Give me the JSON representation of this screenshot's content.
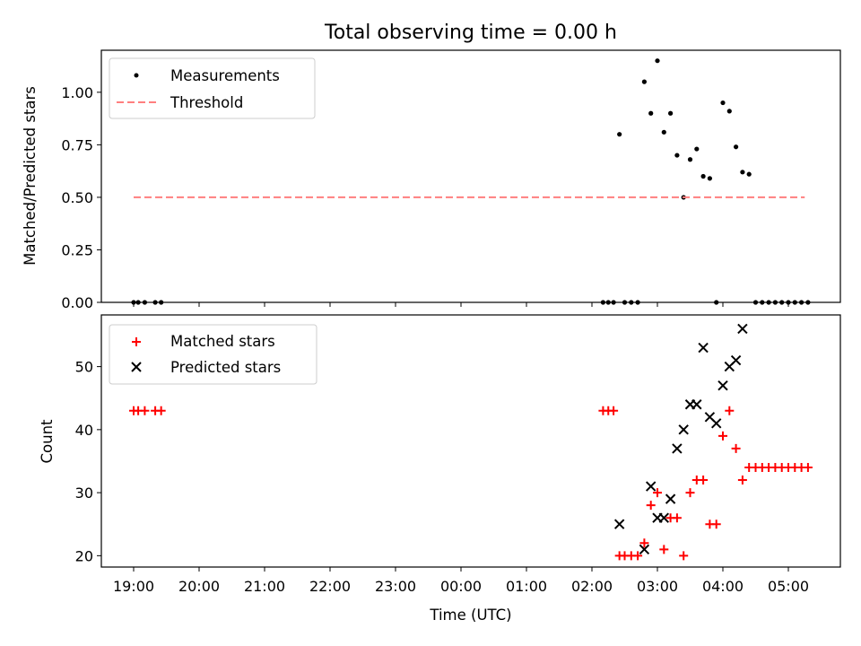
{
  "chart_data": [
    {
      "type": "scatter",
      "title": "Total observing time = 0.00 h",
      "xlabel": "",
      "ylabel": "Matched/Predicted stars",
      "ylim": [
        0,
        1.2
      ],
      "yticks": [
        "0.00",
        "0.25",
        "0.50",
        "0.75",
        "1.00"
      ],
      "legend": {
        "position": "top-left",
        "entries": [
          "Measurements",
          "Threshold"
        ]
      },
      "grid": false,
      "series": [
        {
          "name": "Measurements",
          "kind": "points",
          "color": "#000000",
          "x": [
            0.0,
            0.07,
            0.17,
            0.33,
            0.42,
            7.17,
            7.25,
            7.33,
            7.42,
            7.5,
            7.6,
            7.7,
            7.8,
            7.9,
            8.0,
            8.1,
            8.2,
            8.3,
            8.4,
            8.5,
            8.6,
            8.7,
            8.8,
            8.9,
            9.0,
            9.1,
            9.2,
            9.3,
            9.4,
            9.5,
            9.6,
            9.7,
            9.8,
            9.9,
            10.0,
            10.1,
            10.2,
            10.3
          ],
          "y": [
            0,
            0,
            0,
            0,
            0,
            0,
            0,
            0,
            0.8,
            0,
            0,
            0,
            1.05,
            0.9,
            1.15,
            0.81,
            0.9,
            0.7,
            0.5,
            0.68,
            0.73,
            0.6,
            0.59,
            0,
            0.95,
            0.91,
            0.74,
            0.62,
            0.61,
            0,
            0,
            0,
            0,
            0,
            0,
            0,
            0,
            0
          ]
        },
        {
          "name": "Threshold",
          "kind": "dashed-line",
          "color": "#ff7f7f",
          "x": [
            0.0,
            10.25
          ],
          "y": [
            0.5,
            0.5
          ]
        }
      ]
    },
    {
      "type": "scatter",
      "title": "",
      "xlabel": "Time (UTC)",
      "ylabel": "Count",
      "ylim": [
        18.2,
        58.2
      ],
      "yticks": [
        "20",
        "30",
        "40",
        "50"
      ],
      "xticks": [
        "19:00",
        "20:00",
        "21:00",
        "22:00",
        "23:00",
        "00:00",
        "01:00",
        "02:00",
        "03:00",
        "04:00",
        "05:00"
      ],
      "legend": {
        "position": "top-left",
        "entries": [
          "Matched stars",
          "Predicted stars"
        ]
      },
      "grid": false,
      "series": [
        {
          "name": "Matched stars",
          "marker": "plus",
          "color": "#ff0000",
          "x": [
            0.0,
            0.07,
            0.17,
            0.33,
            0.42,
            7.17,
            7.25,
            7.33,
            7.42,
            7.5,
            7.6,
            7.7,
            7.8,
            7.9,
            8.0,
            8.1,
            8.2,
            8.3,
            8.4,
            8.5,
            8.6,
            8.7,
            8.8,
            8.9,
            9.0,
            9.1,
            9.2,
            9.3,
            9.4,
            9.5,
            9.6,
            9.7,
            9.8,
            9.9,
            10.0,
            10.1,
            10.2,
            10.3
          ],
          "y": [
            43,
            43,
            43,
            43,
            43,
            43,
            43,
            43,
            20,
            20,
            20,
            20,
            22,
            28,
            30,
            21,
            26,
            26,
            20,
            30,
            32,
            32,
            25,
            25,
            39,
            43,
            37,
            32,
            34,
            34,
            34,
            34,
            34,
            34,
            34,
            34,
            34,
            34
          ]
        },
        {
          "name": "Predicted stars",
          "marker": "x",
          "color": "#000000",
          "x": [
            7.42,
            7.8,
            7.9,
            8.0,
            8.1,
            8.2,
            8.3,
            8.4,
            8.5,
            8.6,
            8.7,
            8.8,
            8.9,
            9.0,
            9.1,
            9.2,
            9.3
          ],
          "y": [
            25,
            21,
            31,
            26,
            26,
            29,
            37,
            40,
            44,
            44,
            53,
            42,
            41,
            47,
            50,
            51,
            56
          ]
        }
      ]
    }
  ]
}
